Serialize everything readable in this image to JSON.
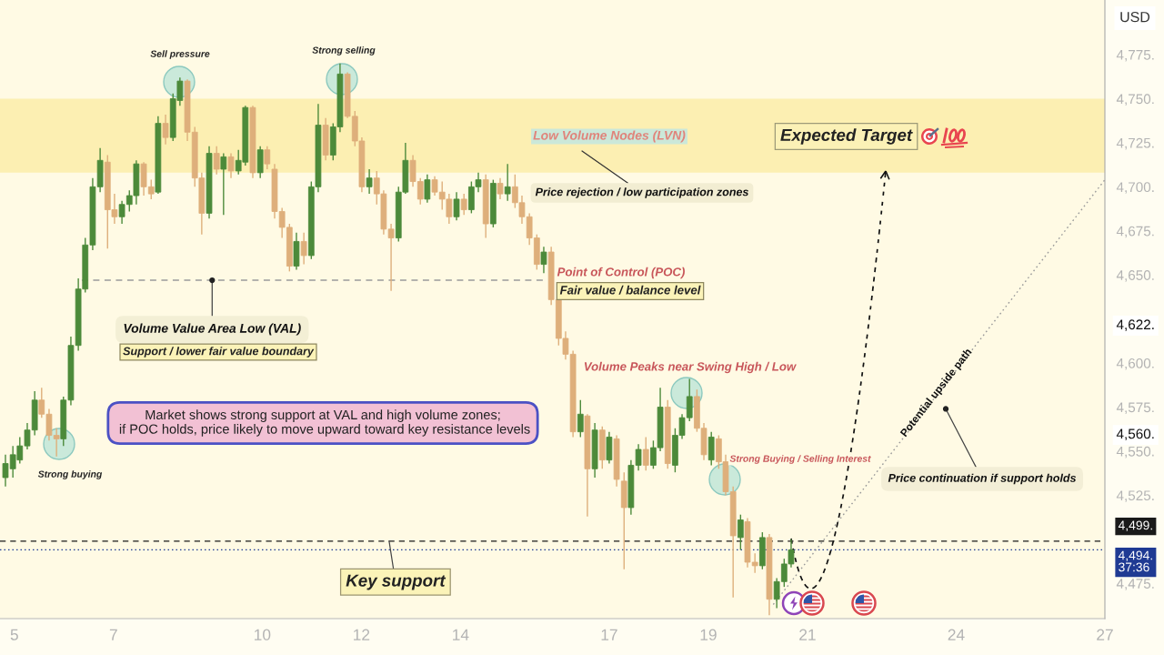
{
  "chart_data": {
    "type": "candlestick",
    "ylabel": "USD",
    "x": [
      4.82,
      4.97,
      5.11,
      5.26,
      5.41,
      5.55,
      5.7,
      5.85,
      5.99,
      6.14,
      6.29,
      6.43,
      6.58,
      6.73,
      6.88,
      7.02,
      7.17,
      7.32,
      7.46,
      7.61,
      7.76,
      7.9,
      8.05,
      8.2,
      8.34,
      8.49,
      8.64,
      8.78,
      8.93,
      9.08,
      9.22,
      9.37,
      9.52,
      9.66,
      9.81,
      9.96,
      10.1,
      10.25,
      10.4,
      10.55,
      10.69,
      10.84,
      10.99,
      11.13,
      11.28,
      11.43,
      11.57,
      11.72,
      11.87,
      12.01,
      12.16,
      12.31,
      12.45,
      12.6,
      12.75,
      12.89,
      13.04,
      13.19,
      13.33,
      13.48,
      13.63,
      13.77,
      13.92,
      14.07,
      14.22,
      14.36,
      14.51,
      14.66,
      14.8,
      14.95,
      15.1,
      15.24,
      15.39,
      15.54,
      15.68,
      15.83,
      15.98,
      16.12,
      16.27,
      16.42,
      16.56,
      16.71,
      16.86,
      17.0,
      17.15,
      17.3,
      17.44,
      17.59,
      17.74,
      17.89,
      18.03,
      18.18,
      18.33,
      18.47,
      18.62,
      18.77,
      18.91,
      19.06,
      19.21,
      19.35,
      19.5,
      19.65,
      19.79,
      19.94,
      20.09,
      20.23,
      20.38,
      20.53,
      20.67
    ],
    "ohlc": [
      [
        4535,
        4548,
        4530,
        4543
      ],
      [
        4540,
        4553,
        4535,
        4548
      ],
      [
        4545,
        4558,
        4543,
        4553
      ],
      [
        4553,
        4566,
        4551,
        4562
      ],
      [
        4562,
        4584,
        4559,
        4579
      ],
      [
        4579,
        4586,
        4569,
        4571
      ],
      [
        4571,
        4574,
        4556,
        4559
      ],
      [
        4559,
        4563,
        4547,
        4557
      ],
      [
        4557,
        4581,
        4553,
        4579
      ],
      [
        4579,
        4615,
        4576,
        4610
      ],
      [
        4610,
        4648,
        4607,
        4642
      ],
      [
        4642,
        4671,
        4640,
        4667
      ],
      [
        4667,
        4705,
        4664,
        4700
      ],
      [
        4700,
        4722,
        4697,
        4715
      ],
      [
        4714,
        4718,
        4665,
        4687
      ],
      [
        4687,
        4696,
        4679,
        4683
      ],
      [
        4683,
        4692,
        4679,
        4690
      ],
      [
        4690,
        4698,
        4686,
        4695
      ],
      [
        4695,
        4715,
        4690,
        4713
      ],
      [
        4713,
        4714,
        4695,
        4700
      ],
      [
        4700,
        4704,
        4693,
        4696
      ],
      [
        4697,
        4740,
        4696,
        4736
      ],
      [
        4736,
        4741,
        4724,
        4728
      ],
      [
        4728,
        4753,
        4726,
        4750
      ],
      [
        4749,
        4762,
        4746,
        4760
      ],
      [
        4760,
        4761,
        4726,
        4731
      ],
      [
        4731,
        4734,
        4700,
        4705
      ],
      [
        4705,
        4708,
        4673,
        4685
      ],
      [
        4685,
        4723,
        4682,
        4719
      ],
      [
        4719,
        4723,
        4707,
        4710
      ],
      [
        4710,
        4719,
        4684,
        4717
      ],
      [
        4717,
        4719,
        4705,
        4709
      ],
      [
        4709,
        4721,
        4707,
        4715
      ],
      [
        4714,
        4746,
        4712,
        4745
      ],
      [
        4745,
        4746,
        4705,
        4708
      ],
      [
        4708,
        4723,
        4705,
        4721
      ],
      [
        4721,
        4723,
        4710,
        4713
      ],
      [
        4710,
        4713,
        4682,
        4686
      ],
      [
        4686,
        4688,
        4671,
        4677
      ],
      [
        4677,
        4679,
        4652,
        4655
      ],
      [
        4655,
        4674,
        4653,
        4669
      ],
      [
        4669,
        4674,
        4656,
        4661
      ],
      [
        4661,
        4703,
        4659,
        4700
      ],
      [
        4700,
        4747,
        4697,
        4735
      ],
      [
        4735,
        4739,
        4715,
        4718
      ],
      [
        4718,
        4736,
        4715,
        4734
      ],
      [
        4734,
        4770,
        4731,
        4764
      ],
      [
        4764,
        4765,
        4739,
        4740
      ],
      [
        4740,
        4743,
        4723,
        4726
      ],
      [
        4726,
        4728,
        4697,
        4700
      ],
      [
        4700,
        4710,
        4696,
        4705
      ],
      [
        4705,
        4709,
        4690,
        4696
      ],
      [
        4696,
        4698,
        4673,
        4676
      ],
      [
        4676,
        4679,
        4641,
        4671
      ],
      [
        4671,
        4700,
        4669,
        4697
      ],
      [
        4697,
        4725,
        4696,
        4715
      ],
      [
        4715,
        4718,
        4700,
        4703
      ],
      [
        4703,
        4705,
        4690,
        4693
      ],
      [
        4693,
        4707,
        4691,
        4704
      ],
      [
        4704,
        4706,
        4695,
        4697
      ],
      [
        4697,
        4703,
        4687,
        4693
      ],
      [
        4693,
        4696,
        4679,
        4683
      ],
      [
        4683,
        4697,
        4681,
        4693
      ],
      [
        4693,
        4696,
        4684,
        4687
      ],
      [
        4687,
        4703,
        4685,
        4700
      ],
      [
        4700,
        4708,
        4697,
        4704
      ],
      [
        4704,
        4707,
        4671,
        4679
      ],
      [
        4679,
        4704,
        4677,
        4702
      ],
      [
        4702,
        4705,
        4693,
        4696
      ],
      [
        4696,
        4713,
        4692,
        4700
      ],
      [
        4700,
        4707,
        4688,
        4691
      ],
      [
        4691,
        4695,
        4679,
        4683
      ],
      [
        4683,
        4685,
        4667,
        4671
      ],
      [
        4671,
        4673,
        4653,
        4656
      ],
      [
        4656,
        4666,
        4651,
        4663
      ],
      [
        4663,
        4666,
        4633,
        4636
      ],
      [
        4636,
        4638,
        4610,
        4614
      ],
      [
        4614,
        4618,
        4602,
        4605
      ],
      [
        4605,
        4607,
        4558,
        4561
      ],
      [
        4561,
        4579,
        4558,
        4571
      ],
      [
        4570,
        4571,
        4513,
        4540
      ],
      [
        4540,
        4566,
        4535,
        4562
      ],
      [
        4562,
        4564,
        4540,
        4545
      ],
      [
        4545,
        4561,
        4543,
        4558
      ],
      [
        4557,
        4559,
        4530,
        4534
      ],
      [
        4533,
        4538,
        4483,
        4518
      ],
      [
        4518,
        4545,
        4514,
        4542
      ],
      [
        4542,
        4554,
        4539,
        4551
      ],
      [
        4551,
        4558,
        4539,
        4542
      ],
      [
        4542,
        4556,
        4540,
        4552
      ],
      [
        4552,
        4586,
        4550,
        4575
      ],
      [
        4575,
        4579,
        4540,
        4543
      ],
      [
        4542,
        4563,
        4538,
        4559
      ],
      [
        4559,
        4571,
        4557,
        4569
      ],
      [
        4569,
        4591,
        4567,
        4581
      ],
      [
        4581,
        4585,
        4561,
        4563
      ],
      [
        4563,
        4566,
        4545,
        4548
      ],
      [
        4545,
        4561,
        4542,
        4558
      ],
      [
        4557,
        4559,
        4540,
        4544
      ],
      [
        4544,
        4548,
        4525,
        4527
      ],
      [
        4527,
        4530,
        4467,
        4502
      ],
      [
        4501,
        4514,
        4494,
        4511
      ],
      [
        4510,
        4512,
        4484,
        4487
      ],
      [
        4487,
        4492,
        4481,
        4485
      ],
      [
        4485,
        4504,
        4483,
        4501
      ],
      [
        4501,
        4503,
        4457,
        4466
      ],
      [
        4466,
        4478,
        4461,
        4476
      ],
      [
        4476,
        4489,
        4473,
        4486
      ],
      [
        4486,
        4500,
        4484,
        4494
      ]
    ],
    "colors": [
      "#4c8a3a",
      "#4c8a3a",
      "#4c8a3a",
      "#4c8a3a",
      "#4c8a3a",
      "#deaf7b",
      "#deaf7b",
      "#deaf7b",
      "#4c8a3a",
      "#4c8a3a",
      "#4c8a3a",
      "#4c8a3a",
      "#4c8a3a",
      "#4c8a3a",
      "#deaf7b",
      "#deaf7b",
      "#4c8a3a",
      "#4c8a3a",
      "#4c8a3a",
      "#deaf7b",
      "#deaf7b",
      "#4c8a3a",
      "#deaf7b",
      "#4c8a3a",
      "#4c8a3a",
      "#deaf7b",
      "#deaf7b",
      "#deaf7b",
      "#4c8a3a",
      "#deaf7b",
      "#4c8a3a",
      "#deaf7b",
      "#4c8a3a",
      "#4c8a3a",
      "#deaf7b",
      "#4c8a3a",
      "#deaf7b",
      "#deaf7b",
      "#deaf7b",
      "#deaf7b",
      "#4c8a3a",
      "#deaf7b",
      "#4c8a3a",
      "#4c8a3a",
      "#deaf7b",
      "#4c8a3a",
      "#4c8a3a",
      "#deaf7b",
      "#deaf7b",
      "#deaf7b",
      "#4c8a3a",
      "#deaf7b",
      "#deaf7b",
      "#deaf7b",
      "#4c8a3a",
      "#4c8a3a",
      "#deaf7b",
      "#deaf7b",
      "#4c8a3a",
      "#deaf7b",
      "#deaf7b",
      "#deaf7b",
      "#4c8a3a",
      "#deaf7b",
      "#4c8a3a",
      "#4c8a3a",
      "#deaf7b",
      "#4c8a3a",
      "#deaf7b",
      "#4c8a3a",
      "#deaf7b",
      "#deaf7b",
      "#deaf7b",
      "#deaf7b",
      "#4c8a3a",
      "#deaf7b",
      "#deaf7b",
      "#deaf7b",
      "#deaf7b",
      "#4c8a3a",
      "#deaf7b",
      "#4c8a3a",
      "#deaf7b",
      "#4c8a3a",
      "#deaf7b",
      "#deaf7b",
      "#4c8a3a",
      "#4c8a3a",
      "#deaf7b",
      "#4c8a3a",
      "#4c8a3a",
      "#deaf7b",
      "#4c8a3a",
      "#4c8a3a",
      "#4c8a3a",
      "#deaf7b",
      "#deaf7b",
      "#4c8a3a",
      "#deaf7b",
      "#deaf7b",
      "#deaf7b",
      "#4c8a3a",
      "#deaf7b",
      "#deaf7b",
      "#4c8a3a",
      "#deaf7b",
      "#4c8a3a",
      "#4c8a3a",
      "#4c8a3a"
    ],
    "series": [
      {
        "type": "line",
        "x": [
          6.36,
          15.72
        ],
        "values": [
          4647,
          4647
        ],
        "color": "#9a9a9a",
        "line_style": "dashed"
      },
      {
        "type": "line",
        "x": [
          20.31,
          27.0
        ],
        "values": [
          4463,
          4704
        ],
        "color": "#9a9a9a",
        "line_style": "dotted"
      }
    ],
    "ref_lines": [
      {
        "axis": "y",
        "value": 4499,
        "label": "4,499.",
        "color": "#1a1a1a",
        "line_style": "dashed"
      },
      {
        "axis": "y",
        "value": 4494,
        "label": "4,494.\n37:36",
        "color": "#1f3a93",
        "line_style": "dotted"
      }
    ],
    "bands": [
      {
        "axis": "y",
        "from": 4708,
        "to": 4750,
        "color": "#fcefb2"
      }
    ],
    "annotations": [
      "Sell pressure",
      "Strong selling",
      "Low Volume Nodes (LVN)",
      "Expected Target",
      "Price rejection / low participation zones",
      "Point of Control (POC)",
      "Fair value / balance level",
      {
        "text": "Volume Value Area Low (VAL)",
        "x": 8.99,
        "y": 4647
      },
      "Support / lower fair value boundary",
      {
        "text": "Volume Peaks near Swing High / Low",
        "x": 18.57,
        "y": 4583
      },
      "Potential upside path",
      "Market shows strong support at VAL and high volume zones;\n if POC holds, price likely to move upward toward key resistance levels",
      "Strong buying",
      "Strong Buying / Selling Interest",
      {
        "text": "Price continuation if support holds",
        "x": 23.79,
        "y": 4574
      },
      {
        "text": "Key support",
        "x": 12.56,
        "y": 4499
      }
    ],
    "xlim": [
      4.71,
      27.0
    ],
    "xticks": [
      5,
      7,
      10,
      12,
      14,
      17,
      19,
      21,
      24,
      27
    ],
    "ylim": [
      4455,
      4806
    ],
    "yticks": [
      {
        "value": 4775,
        "label": "4,775."
      },
      {
        "value": 4750,
        "label": "4,750."
      },
      {
        "value": 4725,
        "label": "4,725."
      },
      {
        "value": 4700,
        "label": "4,700."
      },
      {
        "value": 4675,
        "label": "4,675."
      },
      {
        "value": 4650,
        "label": "4,650."
      },
      {
        "value": 4622,
        "label": "4,622."
      },
      {
        "value": 4600,
        "label": "4,600."
      },
      {
        "value": 4575,
        "label": "4,575."
      },
      {
        "value": 4560,
        "label": "4,560."
      },
      {
        "value": 4550,
        "label": "4,550."
      },
      {
        "value": 4525,
        "label": "4,525."
      },
      {
        "value": 4475,
        "label": "4,475."
      }
    ]
  }
}
